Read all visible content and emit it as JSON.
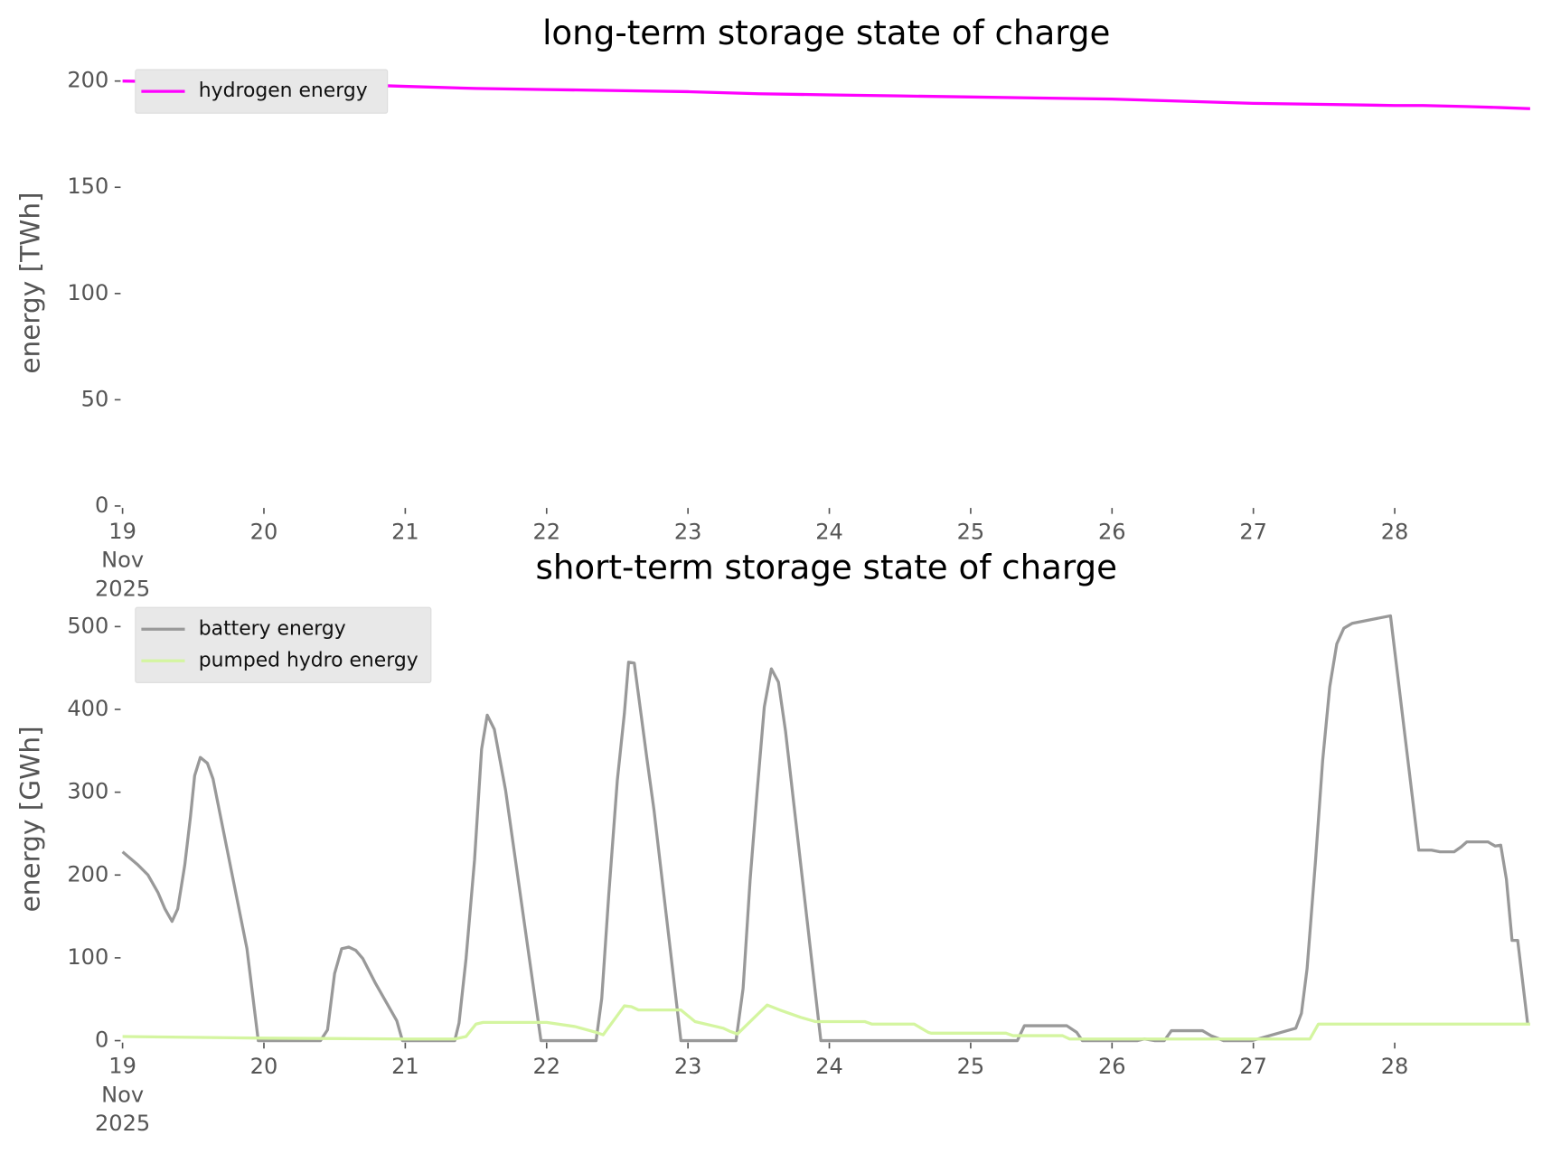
{
  "chart_data": [
    {
      "type": "line",
      "title": "long-term storage state of charge",
      "ylabel": "energy [TWh]",
      "legend": "upper left",
      "xlim": [
        19,
        28.958
      ],
      "ylim": [
        0,
        210
      ],
      "xticks": [
        {
          "value": 19,
          "label": "19\nNov\n2025"
        },
        20,
        21,
        22,
        23,
        24,
        25,
        26,
        27,
        28
      ],
      "yticks": [
        0,
        50,
        100,
        150,
        200
      ],
      "series": [
        {
          "name": "hydrogen energy",
          "color": "#ff00ff",
          "x": [
            19,
            19.5,
            20,
            20.5,
            21,
            21.5,
            22,
            22.5,
            23,
            23.5,
            24,
            24.5,
            25,
            25.5,
            26,
            26.5,
            27,
            27.5,
            28,
            28.2,
            28.5,
            28.75,
            28.958
          ],
          "values": [
            200,
            199.5,
            199,
            198.5,
            197.5,
            196.5,
            196,
            195.5,
            195,
            194,
            193.5,
            193,
            192.5,
            192,
            191.5,
            190.5,
            189.5,
            189,
            188.5,
            188.5,
            188,
            187.5,
            187
          ]
        }
      ]
    },
    {
      "type": "line",
      "title": "short-term storage state of charge",
      "ylabel": "energy [GWh]",
      "legend": "upper left",
      "xlim": [
        19,
        28.958
      ],
      "ylim": [
        0,
        535
      ],
      "xticks": [
        {
          "value": 19,
          "label": "19\nNov\n2025"
        },
        20,
        21,
        22,
        23,
        24,
        25,
        26,
        27,
        28
      ],
      "yticks": [
        0,
        100,
        200,
        300,
        400,
        500
      ],
      "series": [
        {
          "name": "battery energy",
          "color": "#999999",
          "x": [
            19,
            19.11,
            19.18,
            19.25,
            19.3,
            19.35,
            19.39,
            19.44,
            19.48,
            19.51,
            19.55,
            19.6,
            19.64,
            19.88,
            19.96,
            20.4,
            20.45,
            20.5,
            20.55,
            20.6,
            20.65,
            20.7,
            20.79,
            20.89,
            20.94,
            20.98,
            21.35,
            21.38,
            21.43,
            21.49,
            21.54,
            21.58,
            21.63,
            21.71,
            21.96,
            22.35,
            22.39,
            22.44,
            22.5,
            22.55,
            22.58,
            22.62,
            22.71,
            22.76,
            22.95,
            23.34,
            23.39,
            23.44,
            23.49,
            23.54,
            23.59,
            23.64,
            23.69,
            23.94,
            25.33,
            25.38,
            25.68,
            25.75,
            25.79,
            26.18,
            26.23,
            26.3,
            26.37,
            26.42,
            26.64,
            26.7,
            26.79,
            26.99,
            27.3,
            27.34,
            27.38,
            27.44,
            27.49,
            27.54,
            27.59,
            27.64,
            27.7,
            27.97,
            28.17,
            28.26,
            28.32,
            28.42,
            28.47,
            28.51,
            28.66,
            28.71,
            28.75,
            28.79,
            28.83,
            28.87,
            28.94
          ],
          "values": [
            228,
            212,
            200,
            179,
            159,
            144,
            159,
            212,
            270,
            320,
            342,
            335,
            316,
            111,
            0,
            0,
            13,
            81,
            111,
            113,
            109,
            99,
            69,
            39,
            24,
            0,
            0,
            21,
            99,
            218,
            352,
            393,
            376,
            302,
            0,
            0,
            51,
            177,
            314,
            395,
            457,
            456,
            340,
            278,
            0,
            0,
            63,
            195,
            302,
            403,
            449,
            433,
            374,
            0,
            0,
            18,
            18,
            10,
            0,
            0,
            2,
            0,
            0,
            12,
            12,
            6,
            0,
            0,
            15,
            33,
            87,
            218,
            338,
            427,
            479,
            498,
            504,
            513,
            230,
            230,
            228,
            228,
            234,
            240,
            240,
            235,
            236,
            195,
            121,
            121,
            21
          ]
        },
        {
          "name": "pumped hydro energy",
          "color": "#d4f5a0",
          "x": [
            19,
            20,
            21,
            21.35,
            21.43,
            21.5,
            21.55,
            22,
            22.2,
            22.35,
            22.4,
            22.55,
            22.6,
            22.65,
            22.95,
            23.05,
            23.25,
            23.3,
            23.35,
            23.56,
            23.65,
            23.8,
            23.9,
            24.25,
            24.3,
            24.6,
            24.7,
            24.72,
            25.25,
            25.3,
            25.65,
            25.7,
            27.4,
            27.46,
            28.958
          ],
          "values": [
            5,
            3,
            2,
            2,
            5,
            20,
            22,
            22,
            17,
            10,
            7,
            42,
            41,
            37,
            37,
            23,
            15,
            11,
            8,
            43,
            37,
            28,
            23,
            23,
            20,
            20,
            10,
            9,
            9,
            6,
            6,
            2,
            2,
            20,
            20
          ]
        }
      ]
    }
  ]
}
